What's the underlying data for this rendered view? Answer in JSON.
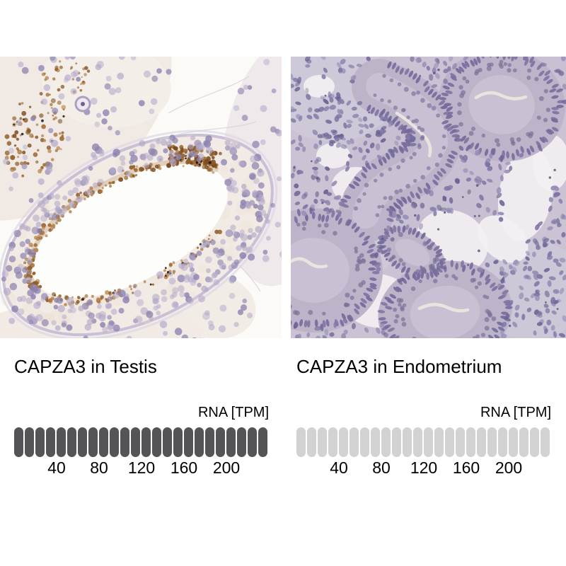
{
  "panels": [
    {
      "title": "CAPZA3 in Testis",
      "rna_label": "RNA [TPM]",
      "bar": {
        "total_segments": 24,
        "filled_segments": 24,
        "tpm_per_segment": 10,
        "ticks": [
          "40",
          "80",
          "120",
          "160",
          "200"
        ]
      }
    },
    {
      "title": "CAPZA3 in Endometrium",
      "rna_label": "RNA [TPM]",
      "bar": {
        "total_segments": 24,
        "filled_segments": 0,
        "tpm_per_segment": 10,
        "ticks": [
          "40",
          "80",
          "120",
          "160",
          "200"
        ]
      }
    }
  ],
  "colors": {
    "filled_segment": "#545456",
    "empty_segment": "#d2d2d2",
    "text": "#000000"
  },
  "chart_data": [
    {
      "type": "bar",
      "title": "CAPZA3 in Testis",
      "xlabel": "RNA [TPM]",
      "tick_labels": [
        40,
        80,
        120,
        160,
        200
      ],
      "xlim": [
        0,
        240
      ],
      "segments_total": 24,
      "segments_filled": 24,
      "tpm_per_segment": 10
    },
    {
      "type": "bar",
      "title": "CAPZA3 in Endometrium",
      "xlabel": "RNA [TPM]",
      "tick_labels": [
        40,
        80,
        120,
        160,
        200
      ],
      "xlim": [
        0,
        240
      ],
      "segments_total": 24,
      "segments_filled": 0,
      "tpm_per_segment": 10
    }
  ]
}
